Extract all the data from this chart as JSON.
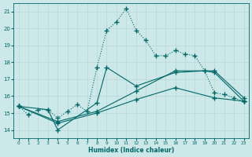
{
  "xlabel": "Humidex (Indice chaleur)",
  "bg_color": "#cce8e8",
  "grid_color": "#b8d8d8",
  "line_color": "#006868",
  "xlim": [
    -0.5,
    23.5
  ],
  "ylim": [
    13.5,
    21.5
  ],
  "yticks": [
    14,
    15,
    16,
    17,
    18,
    19,
    20,
    21
  ],
  "xticks": [
    0,
    1,
    2,
    3,
    4,
    5,
    6,
    7,
    8,
    9,
    10,
    11,
    12,
    13,
    14,
    15,
    16,
    17,
    18,
    19,
    20,
    21,
    22,
    23
  ],
  "line1_x": [
    0,
    1,
    2,
    3,
    4,
    5,
    6,
    7,
    8,
    9,
    10,
    11,
    12,
    13,
    14,
    15,
    16,
    17,
    18,
    19,
    20,
    21,
    22,
    23
  ],
  "line1_y": [
    15.4,
    14.9,
    15.2,
    15.2,
    14.7,
    15.1,
    15.5,
    15.1,
    17.7,
    19.9,
    20.4,
    21.2,
    19.9,
    19.3,
    18.4,
    18.4,
    18.7,
    18.5,
    18.4,
    17.5,
    16.2,
    16.1,
    15.9,
    15.7
  ],
  "line2_x": [
    0,
    3,
    4,
    8,
    9,
    12,
    16,
    19,
    20,
    23
  ],
  "line2_y": [
    15.4,
    15.2,
    14.0,
    15.6,
    17.7,
    16.6,
    17.4,
    17.5,
    17.4,
    15.7
  ],
  "line3_x": [
    0,
    4,
    8,
    12,
    16,
    20,
    23
  ],
  "line3_y": [
    15.4,
    14.5,
    15.1,
    16.3,
    17.5,
    17.5,
    15.9
  ],
  "line4_x": [
    0,
    4,
    8,
    12,
    16,
    20,
    23
  ],
  "line4_y": [
    15.4,
    14.4,
    15.0,
    15.8,
    16.5,
    15.9,
    15.7
  ]
}
